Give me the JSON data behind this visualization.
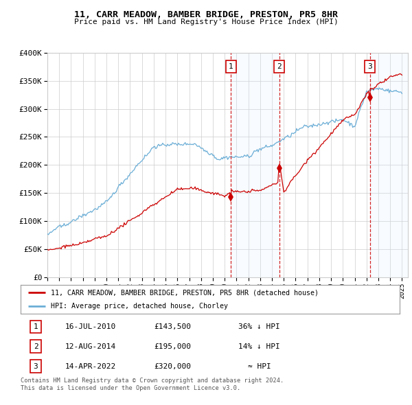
{
  "title": "11, CARR MEADOW, BAMBER BRIDGE, PRESTON, PR5 8HR",
  "subtitle": "Price paid vs. HM Land Registry's House Price Index (HPI)",
  "hpi_color": "#6baed6",
  "price_color": "#cc0000",
  "bg_color": "#ffffff",
  "grid_color": "#cccccc",
  "shade_color": "#ddeeff",
  "ylabel_ticks": [
    "£0",
    "£50K",
    "£100K",
    "£150K",
    "£200K",
    "£250K",
    "£300K",
    "£350K",
    "£400K"
  ],
  "ytick_values": [
    0,
    50000,
    100000,
    150000,
    200000,
    250000,
    300000,
    350000,
    400000
  ],
  "xlim_start": 1995.0,
  "xlim_end": 2025.5,
  "ylim_min": 0,
  "ylim_max": 400000,
  "sale_dates": [
    2010.54,
    2014.62,
    2022.29
  ],
  "sale_prices": [
    143500,
    195000,
    320000
  ],
  "sale_labels": [
    "1",
    "2",
    "3"
  ],
  "sale_annotations": [
    {
      "label": "1",
      "date": "16-JUL-2010",
      "price": "£143,500",
      "note": "36% ↓ HPI"
    },
    {
      "label": "2",
      "date": "12-AUG-2014",
      "price": "£195,000",
      "note": "14% ↓ HPI"
    },
    {
      "label": "3",
      "date": "14-APR-2022",
      "price": "£320,000",
      "note": "≈ HPI"
    }
  ],
  "legend_line1": "11, CARR MEADOW, BAMBER BRIDGE, PRESTON, PR5 8HR (detached house)",
  "legend_line2": "HPI: Average price, detached house, Chorley",
  "footer1": "Contains HM Land Registry data © Crown copyright and database right 2024.",
  "footer2": "This data is licensed under the Open Government Licence v3.0."
}
